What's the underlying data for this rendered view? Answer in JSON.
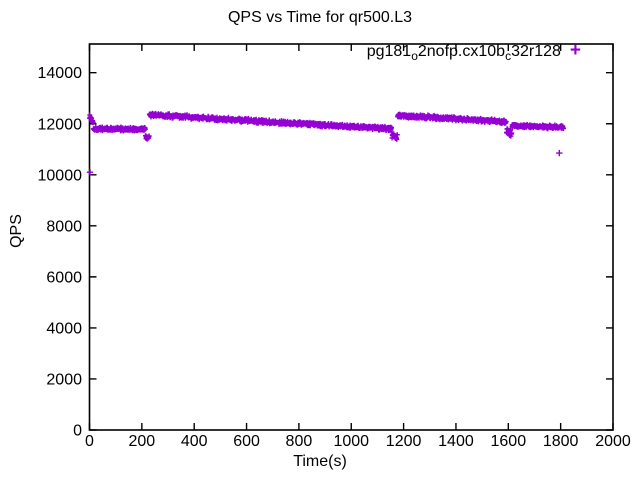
{
  "title": "QPS vs Time for qr500.L3",
  "xlabel": "Time(s)",
  "ylabel": "QPS",
  "legend": {
    "label_plain": "pg181_o2nofp.cx10b_c32r128",
    "label_parts": {
      "p1": "pg181",
      "s1": "o",
      "p2": "2nofp.cx10b",
      "s2": "c",
      "p3": "32r128"
    },
    "marker": "+",
    "color": "#9400D3"
  },
  "axes": {
    "x": {
      "ticks": [
        0,
        200,
        400,
        600,
        800,
        1000,
        1200,
        1400,
        1600,
        1800,
        2000
      ]
    },
    "y": {
      "ticks": [
        0,
        2000,
        4000,
        6000,
        8000,
        10000,
        12000,
        14000
      ]
    }
  },
  "chart_data": {
    "type": "scatter",
    "title": "QPS vs Time for qr500.L3",
    "xlabel": "Time(s)",
    "ylabel": "QPS",
    "xlim": [
      0,
      2000
    ],
    "ylim": [
      0,
      15125
    ],
    "grid": false,
    "legend_position": "top-right-inside",
    "series": [
      {
        "name": "pg181_o2nofp.cx10b_c32r128",
        "color": "#9400D3",
        "marker": "+",
        "sample_interval_s": 1,
        "segments": [
          {
            "t0": 0,
            "t1": 15,
            "q0": 12300,
            "q1": 12050,
            "noise": 130
          },
          {
            "t0": 15,
            "t1": 214,
            "q0": 11810,
            "q1": 11780,
            "noise": 90
          },
          {
            "t0": 214,
            "t1": 229,
            "q0": 11560,
            "q1": 11420,
            "noise": 160
          },
          {
            "t0": 229,
            "t1": 1155,
            "q0": 12350,
            "q1": 11800,
            "noise": 90
          },
          {
            "t0": 1155,
            "t1": 1177,
            "q0": 11570,
            "q1": 11470,
            "noise": 150
          },
          {
            "t0": 1177,
            "t1": 1593,
            "q0": 12330,
            "q1": 12080,
            "noise": 90
          },
          {
            "t0": 1593,
            "t1": 1614,
            "q0": 11720,
            "q1": 11580,
            "noise": 170
          },
          {
            "t0": 1614,
            "t1": 1812,
            "q0": 11930,
            "q1": 11860,
            "noise": 85
          }
        ],
        "outliers": [
          [
            2,
            10100
          ],
          [
            1795,
            10850
          ]
        ]
      }
    ]
  }
}
